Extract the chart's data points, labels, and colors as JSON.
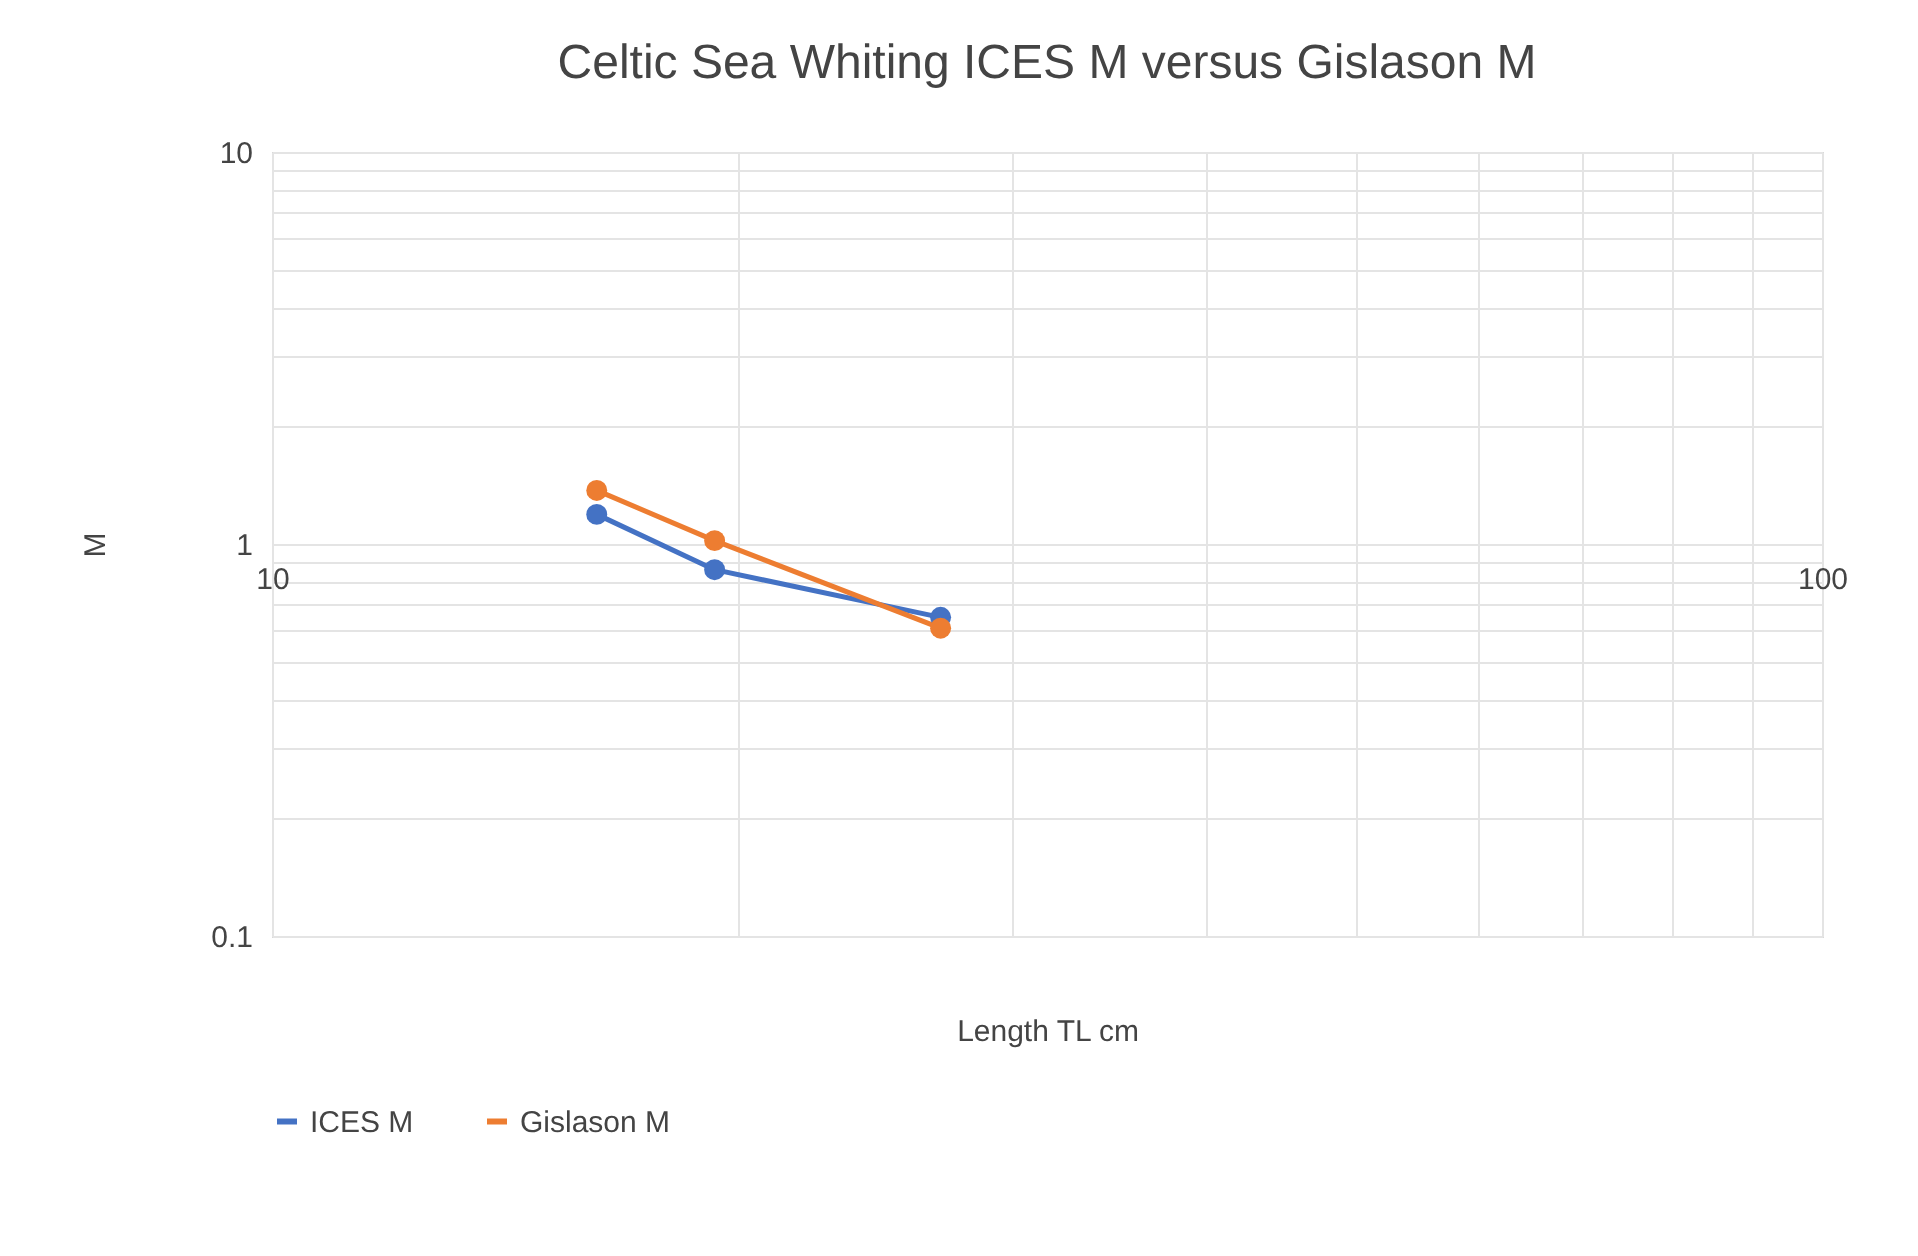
{
  "chart_data": {
    "type": "line",
    "title": "Celtic Sea Whiting ICES M versus Gislason M",
    "xlabel": "Length TL cm",
    "ylabel": "M",
    "x": [
      16.2,
      19.3,
      27.0
    ],
    "series": [
      {
        "name": "ICES M",
        "color": "#4472c4",
        "values": [
          1.19,
          0.86,
          0.65
        ]
      },
      {
        "name": "Gislason M",
        "color": "#ed7d31",
        "values": [
          1.37,
          1.02,
          0.61
        ]
      }
    ],
    "xlim": [
      10,
      100
    ],
    "ylim": [
      0.1,
      10
    ],
    "xticks": [
      10,
      {
        "value": 20,
        "label": null
      },
      {
        "value": 30,
        "label": null
      },
      {
        "value": 40,
        "label": null
      },
      {
        "value": 50,
        "label": null
      },
      {
        "value": 60,
        "label": null
      },
      {
        "value": 70,
        "label": null
      },
      {
        "value": 80,
        "label": null
      },
      {
        "value": 90,
        "label": null
      },
      100
    ],
    "yticks": [
      0.1,
      {
        "value": 0.2,
        "label": null
      },
      {
        "value": 0.3,
        "label": null
      },
      {
        "value": 0.4,
        "label": null
      },
      {
        "value": 0.5,
        "label": null
      },
      {
        "value": 0.6,
        "label": null
      },
      {
        "value": 0.7,
        "label": null
      },
      {
        "value": 0.8,
        "label": null
      },
      {
        "value": 0.9,
        "label": null
      },
      1,
      {
        "value": 2,
        "label": null
      },
      {
        "value": 3,
        "label": null
      },
      {
        "value": 4,
        "label": null
      },
      {
        "value": 5,
        "label": null
      },
      {
        "value": 6,
        "label": null
      },
      {
        "value": 7,
        "label": null
      },
      {
        "value": 8,
        "label": null
      },
      {
        "value": 9,
        "label": null
      },
      10
    ],
    "log": "xy",
    "grid": true,
    "legend": "bottom",
    "marker": "circle",
    "line_style": "solid"
  }
}
